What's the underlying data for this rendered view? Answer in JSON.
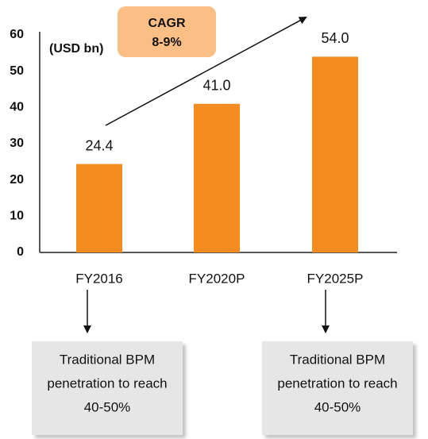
{
  "chart_data": {
    "type": "bar",
    "unit_label": "(USD bn)",
    "cagr": {
      "title": "CAGR",
      "value": "8-9%"
    },
    "categories": [
      "FY2016",
      "FY2020P",
      "FY2025P"
    ],
    "values": [
      24.4,
      41,
      54
    ],
    "value_labels": [
      "24.4",
      "41.0",
      "54.0"
    ],
    "color": "#f68b1f",
    "ylim": [
      0,
      60
    ],
    "yticks": [
      0,
      10,
      20,
      30,
      40,
      50,
      60
    ],
    "grid": false,
    "notes": [
      {
        "category": "FY2016",
        "lines": [
          "Traditional BPM",
          "penetration to reach",
          "40-50%"
        ]
      },
      {
        "category": "FY2025P",
        "lines": [
          "Traditional BPM",
          "penetration to reach",
          "40-50%"
        ]
      }
    ]
  }
}
